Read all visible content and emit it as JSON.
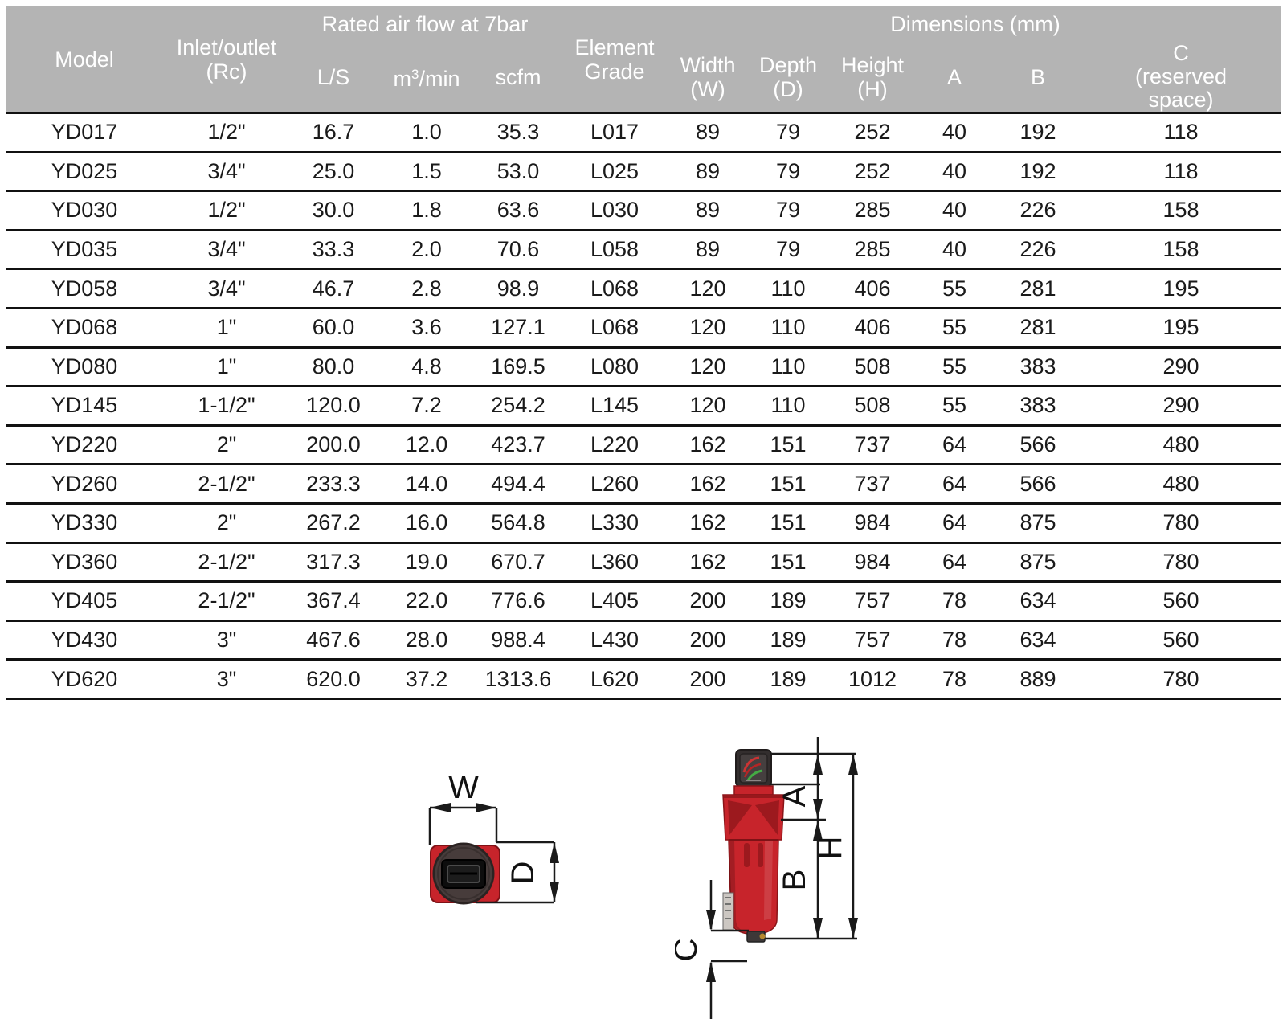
{
  "table": {
    "group_headers": {
      "airflow": "Rated air flow at 7bar",
      "dimensions": "Dimensions (mm)"
    },
    "columns": {
      "model": "Model",
      "inlet_line1": "Inlet/outlet",
      "inlet_line2": "(Rc)",
      "ls": "L/S",
      "m3min_prefix": "m",
      "m3min_sup": "3",
      "m3min_suffix": "/min",
      "scfm": "scfm",
      "element_line1": "Element",
      "element_line2": "Grade",
      "width_line1": "Width",
      "width_line2": "(W)",
      "depth_line1": "Depth",
      "depth_line2": "(D)",
      "height_line1": "Height",
      "height_line2": "(H)",
      "a": "A",
      "b": "B",
      "c_line1": "C",
      "c_line2": "(reserved",
      "c_line3": "space)"
    },
    "rows": [
      [
        "YD017",
        "1/2\"",
        "16.7",
        "1.0",
        "35.3",
        "L017",
        "89",
        "79",
        "252",
        "40",
        "192",
        "118"
      ],
      [
        "YD025",
        "3/4\"",
        "25.0",
        "1.5",
        "53.0",
        "L025",
        "89",
        "79",
        "252",
        "40",
        "192",
        "118"
      ],
      [
        "YD030",
        "1/2\"",
        "30.0",
        "1.8",
        "63.6",
        "L030",
        "89",
        "79",
        "285",
        "40",
        "226",
        "158"
      ],
      [
        "YD035",
        "3/4\"",
        "33.3",
        "2.0",
        "70.6",
        "L058",
        "89",
        "79",
        "285",
        "40",
        "226",
        "158"
      ],
      [
        "YD058",
        "3/4\"",
        "46.7",
        "2.8",
        "98.9",
        "L068",
        "120",
        "110",
        "406",
        "55",
        "281",
        "195"
      ],
      [
        "YD068",
        "1\"",
        "60.0",
        "3.6",
        "127.1",
        "L068",
        "120",
        "110",
        "406",
        "55",
        "281",
        "195"
      ],
      [
        "YD080",
        "1\"",
        "80.0",
        "4.8",
        "169.5",
        "L080",
        "120",
        "110",
        "508",
        "55",
        "383",
        "290"
      ],
      [
        "YD145",
        "1-1/2\"",
        "120.0",
        "7.2",
        "254.2",
        "L145",
        "120",
        "110",
        "508",
        "55",
        "383",
        "290"
      ],
      [
        "YD220",
        "2\"",
        "200.0",
        "12.0",
        "423.7",
        "L220",
        "162",
        "151",
        "737",
        "64",
        "566",
        "480"
      ],
      [
        "YD260",
        "2-1/2\"",
        "233.3",
        "14.0",
        "494.4",
        "L260",
        "162",
        "151",
        "737",
        "64",
        "566",
        "480"
      ],
      [
        "YD330",
        "2\"",
        "267.2",
        "16.0",
        "564.8",
        "L330",
        "162",
        "151",
        "984",
        "64",
        "875",
        "780"
      ],
      [
        "YD360",
        "2-1/2\"",
        "317.3",
        "19.0",
        "670.7",
        "L360",
        "162",
        "151",
        "984",
        "64",
        "875",
        "780"
      ],
      [
        "YD405",
        "2-1/2\"",
        "367.4",
        "22.0",
        "776.6",
        "L405",
        "200",
        "189",
        "757",
        "78",
        "634",
        "560"
      ],
      [
        "YD430",
        "3\"",
        "467.6",
        "28.0",
        "988.4",
        "L430",
        "200",
        "189",
        "757",
        "78",
        "634",
        "560"
      ],
      [
        "YD620",
        "3\"",
        "620.0",
        "37.2",
        "1313.6",
        "L620",
        "200",
        "189",
        "1012",
        "78",
        "889",
        "780"
      ]
    ]
  },
  "diagram": {
    "labels": {
      "w": "W",
      "d": "D",
      "a": "A",
      "b": "B",
      "h": "H",
      "c": "C"
    },
    "colors": {
      "header_bg": "#b4b4b4",
      "header_text": "#ffffff",
      "row_line": "#111111",
      "filter_red": "#c7242b",
      "filter_red_dark": "#9c191e",
      "gauge_dark": "#453f3f",
      "gauge_arc_red": "#cc3333",
      "gauge_arc_green": "#44aa44",
      "dimension_line": "#1a1a1a"
    }
  }
}
